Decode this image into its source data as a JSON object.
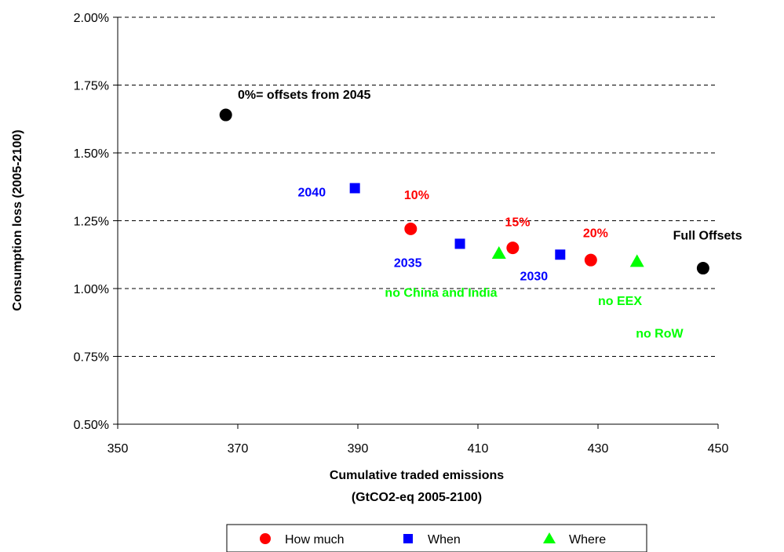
{
  "chart_data": {
    "type": "scatter",
    "xlabel_line1": "Cumulative traded emissions",
    "xlabel_line2": "(GtCO2-eq 2005-2100)",
    "ylabel": "Consumption loss (2005-2100)",
    "xlim": [
      350,
      450
    ],
    "ylim": [
      0.5,
      2.0
    ],
    "x_ticks": [
      350,
      370,
      390,
      410,
      430,
      450
    ],
    "y_ticks": [
      0.5,
      0.75,
      1.0,
      1.25,
      1.5,
      1.75,
      2.0
    ],
    "x_tick_labels": [
      "350",
      "370",
      "390",
      "410",
      "430",
      "450"
    ],
    "y_tick_labels": [
      "0.50%",
      "0.75%",
      "1.00%",
      "1.25%",
      "1.50%",
      "1.75%",
      "2.00%"
    ],
    "grid": "horizontal dashed",
    "legend_position": "bottom",
    "series": [
      {
        "name": "How much",
        "color": "#ff0000",
        "marker": "circle",
        "points": [
          {
            "x": 398.8,
            "y": 1.22
          },
          {
            "x": 415.8,
            "y": 1.15
          },
          {
            "x": 428.8,
            "y": 1.105
          }
        ]
      },
      {
        "name": "When",
        "color": "#0000ff",
        "marker": "square",
        "points": [
          {
            "x": 389.5,
            "y": 1.37
          },
          {
            "x": 407.0,
            "y": 1.165
          },
          {
            "x": 423.7,
            "y": 1.125
          }
        ]
      },
      {
        "name": "Where",
        "color": "#00ff00",
        "marker": "triangle",
        "points": [
          {
            "x": 413.5,
            "y": 1.13
          },
          {
            "x": 436.5,
            "y": 1.1
          }
        ]
      },
      {
        "name": "",
        "color": "#000000",
        "marker": "circle",
        "points": [
          {
            "x": 368.0,
            "y": 1.64
          },
          {
            "x": 447.5,
            "y": 1.075
          }
        ]
      }
    ],
    "annotations": [
      {
        "text": "0%= offsets from 2045",
        "x": 370.0,
        "y": 1.7,
        "color": "#000000"
      },
      {
        "text": "2040",
        "x": 380.0,
        "y": 1.34,
        "color": "#0000ff"
      },
      {
        "text": "10%",
        "x": 397.7,
        "y": 1.33,
        "color": "#ff0000"
      },
      {
        "text": "15%",
        "x": 414.5,
        "y": 1.23,
        "color": "#ff0000"
      },
      {
        "text": "20%",
        "x": 427.5,
        "y": 1.19,
        "color": "#ff0000"
      },
      {
        "text": "Full Offsets",
        "x": 442.5,
        "y": 1.18,
        "color": "#000000"
      },
      {
        "text": "2035",
        "x": 396.0,
        "y": 1.08,
        "color": "#0000ff"
      },
      {
        "text": "2030",
        "x": 417.0,
        "y": 1.03,
        "color": "#0000ff"
      },
      {
        "text": "no China and India",
        "x": 394.5,
        "y": 0.97,
        "color": "#00ff00"
      },
      {
        "text": "no EEX",
        "x": 430.0,
        "y": 0.94,
        "color": "#00ff00"
      },
      {
        "text": "no RoW",
        "x": 436.3,
        "y": 0.82,
        "color": "#00ff00"
      }
    ]
  }
}
